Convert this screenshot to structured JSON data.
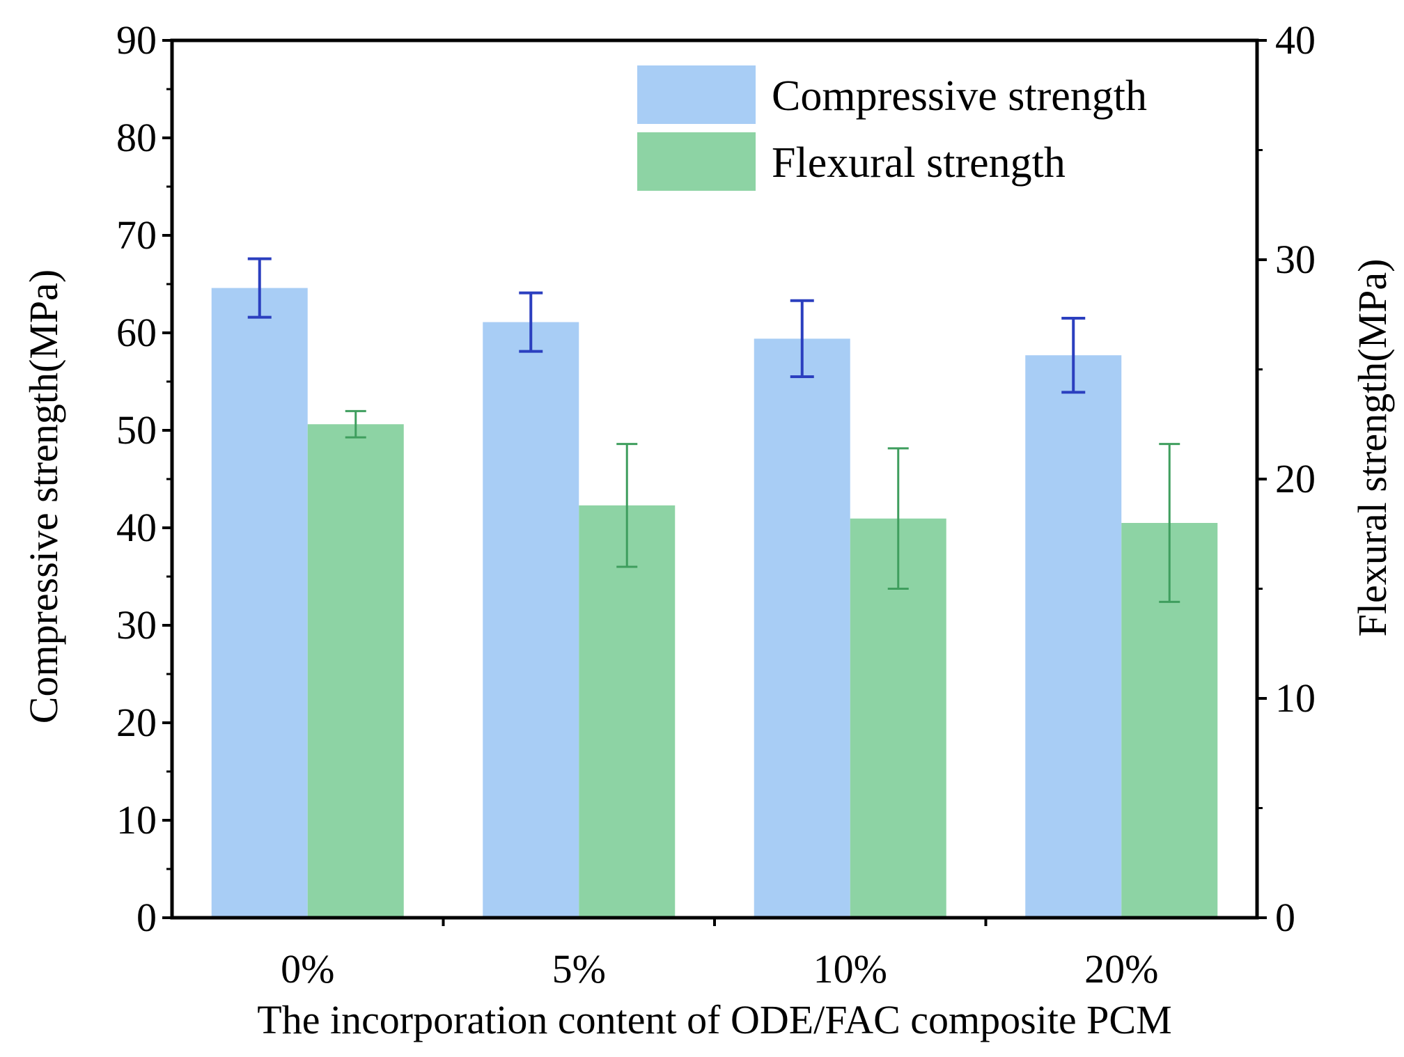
{
  "chart_data": {
    "type": "bar",
    "title": "",
    "categories": [
      "0%",
      "5%",
      "10%",
      "20%"
    ],
    "xlabel": "The incorporation content of ODE/FAC composite PCM",
    "ylabel": "Compressive strength(MPa)",
    "y2label": "Flexural strength(MPa)",
    "ylim": [
      0,
      90
    ],
    "y2lim": [
      0,
      40
    ],
    "yticks": [
      0,
      10,
      20,
      30,
      40,
      50,
      60,
      70,
      80,
      90
    ],
    "y2ticks": [
      0,
      10,
      20,
      30,
      40
    ],
    "legend_position": "top-right",
    "grid": false,
    "series": [
      {
        "name": "Compressive strength",
        "axis": "left",
        "color": "#a8cdf5",
        "error_color": "#2b3fbf",
        "values": [
          64.6,
          61.1,
          59.4,
          57.7
        ],
        "errors": [
          3.0,
          3.0,
          3.9,
          3.8
        ]
      },
      {
        "name": "Flexural strength",
        "axis": "right",
        "color": "#8dd3a4",
        "error_color": "#3f9e5e",
        "values": [
          22.5,
          18.8,
          18.2,
          18.0
        ],
        "errors": [
          0.6,
          2.8,
          3.2,
          3.6
        ]
      }
    ]
  }
}
